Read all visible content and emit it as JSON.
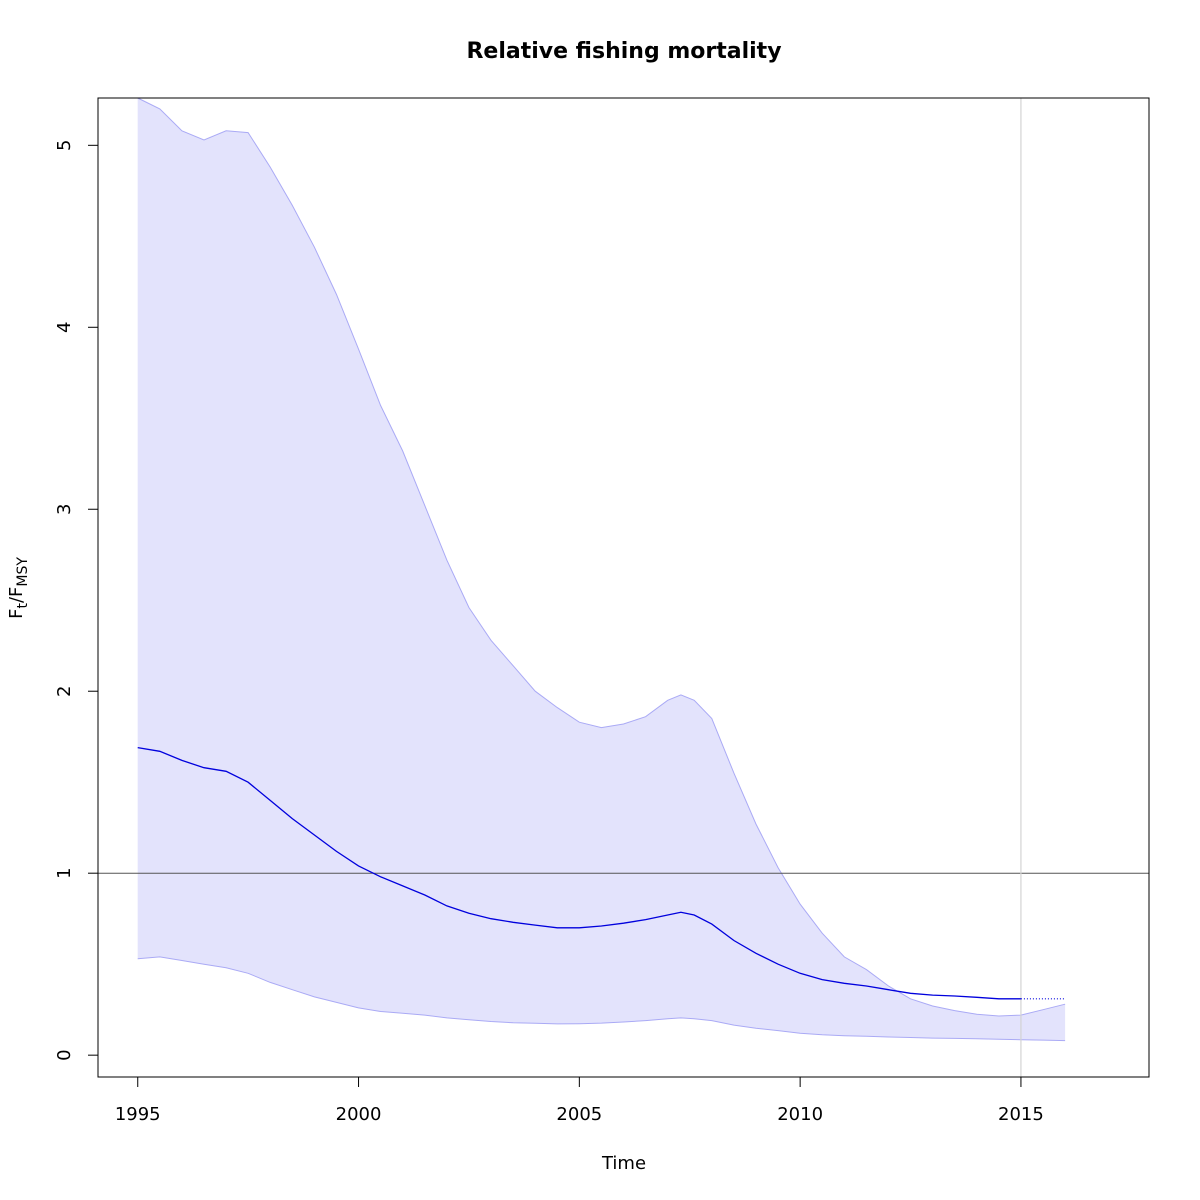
{
  "chart_data": {
    "type": "line",
    "title": "Relative fishing mortality",
    "xlabel": "Time",
    "ylabel": {
      "main_f": "F",
      "sub_t": "t",
      "slash": "/",
      "main_f2": "F",
      "sub_msy": "MSY"
    },
    "xlim": [
      1994.1,
      2017.9
    ],
    "ylim": [
      -0.12,
      5.26
    ],
    "x_ticks": [
      1995,
      2000,
      2005,
      2010,
      2015
    ],
    "y_ticks": [
      0,
      1,
      2,
      3,
      4,
      5
    ],
    "reference_hline": 1,
    "reference_vline": 2015,
    "colors": {
      "line": "#0000dd",
      "band_fill": "#e3e3fc",
      "band_edge": "#aaaaf5",
      "hline": "#555555",
      "vline": "#d3d3d3",
      "frame": "#000000"
    },
    "series": [
      {
        "role": "estimate",
        "x": [
          1995,
          1995.5,
          1996,
          1996.5,
          1997,
          1997.5,
          1998,
          1998.5,
          1999,
          1999.5,
          2000,
          2000.5,
          2001,
          2001.5,
          2002,
          2002.5,
          2003,
          2003.5,
          2004,
          2004.5,
          2005,
          2005.5,
          2006,
          2006.5,
          2007,
          2007.3,
          2007.6,
          2008,
          2008.5,
          2009,
          2009.5,
          2010,
          2010.5,
          2011,
          2011.5,
          2012,
          2012.5,
          2013,
          2013.5,
          2014,
          2014.5,
          2015
        ],
        "values": [
          1.69,
          1.67,
          1.62,
          1.58,
          1.56,
          1.5,
          1.4,
          1.3,
          1.21,
          1.12,
          1.04,
          0.98,
          0.93,
          0.88,
          0.82,
          0.78,
          0.75,
          0.73,
          0.715,
          0.7,
          0.7,
          0.71,
          0.725,
          0.745,
          0.77,
          0.785,
          0.77,
          0.72,
          0.63,
          0.56,
          0.5,
          0.45,
          0.415,
          0.395,
          0.38,
          0.36,
          0.34,
          0.33,
          0.325,
          0.318,
          0.31,
          0.31
        ]
      },
      {
        "role": "projection",
        "style": "dotted",
        "x": [
          2015,
          2016
        ],
        "values": [
          0.31,
          0.31
        ]
      },
      {
        "role": "upper_bound",
        "x": [
          1995,
          1995.5,
          1996,
          1996.5,
          1997,
          1997.5,
          1998,
          1998.5,
          1999,
          1999.5,
          2000,
          2000.5,
          2001,
          2001.5,
          2002,
          2002.5,
          2003,
          2003.5,
          2004,
          2004.5,
          2005,
          2005.5,
          2006,
          2006.5,
          2007,
          2007.3,
          2007.6,
          2008,
          2008.5,
          2009,
          2009.5,
          2010,
          2010.5,
          2011,
          2011.5,
          2012,
          2012.5,
          2013,
          2013.5,
          2014,
          2014.5,
          2015,
          2015.5,
          2016
        ],
        "values": [
          5.28,
          5.2,
          5.08,
          5.03,
          5.08,
          5.07,
          4.88,
          4.67,
          4.44,
          4.18,
          3.88,
          3.57,
          3.32,
          3.02,
          2.72,
          2.46,
          2.28,
          2.14,
          2.0,
          1.91,
          1.83,
          1.8,
          1.82,
          1.86,
          1.95,
          1.98,
          1.95,
          1.85,
          1.55,
          1.27,
          1.03,
          0.83,
          0.67,
          0.54,
          0.47,
          0.38,
          0.31,
          0.27,
          0.245,
          0.225,
          0.215,
          0.22,
          0.25,
          0.28
        ]
      },
      {
        "role": "lower_bound",
        "x": [
          1995,
          1995.5,
          1996,
          1996.5,
          1997,
          1997.5,
          1998,
          1998.5,
          1999,
          1999.5,
          2000,
          2000.5,
          2001,
          2001.5,
          2002,
          2002.5,
          2003,
          2003.5,
          2004,
          2004.5,
          2005,
          2005.5,
          2006,
          2006.5,
          2007,
          2007.3,
          2007.6,
          2008,
          2008.5,
          2009,
          2009.5,
          2010,
          2010.5,
          2011,
          2011.5,
          2012,
          2012.5,
          2013,
          2013.5,
          2014,
          2014.5,
          2015,
          2015.5,
          2016
        ],
        "values": [
          0.53,
          0.54,
          0.52,
          0.5,
          0.48,
          0.45,
          0.4,
          0.36,
          0.32,
          0.29,
          0.26,
          0.24,
          0.23,
          0.22,
          0.205,
          0.195,
          0.185,
          0.178,
          0.175,
          0.172,
          0.173,
          0.176,
          0.182,
          0.19,
          0.2,
          0.205,
          0.2,
          0.19,
          0.165,
          0.148,
          0.135,
          0.12,
          0.112,
          0.107,
          0.104,
          0.1,
          0.097,
          0.094,
          0.092,
          0.09,
          0.088,
          0.085,
          0.083,
          0.08
        ]
      }
    ]
  }
}
